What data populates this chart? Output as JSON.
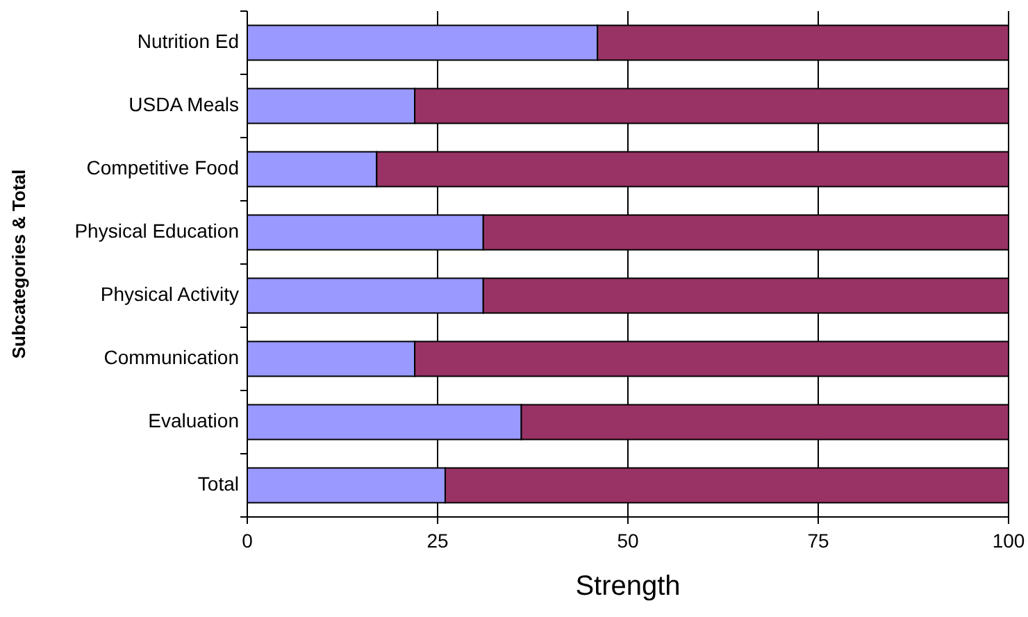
{
  "chart_data": {
    "type": "bar",
    "orientation": "horizontal",
    "stacked": true,
    "categories": [
      "Nutrition Ed",
      "USDA Meals",
      "Competitive Food",
      "Physical Education",
      "Physical Activity",
      "Communication",
      "Evaluation",
      "Total"
    ],
    "series": [
      {
        "color": "#9999ff",
        "values": [
          46,
          22,
          17,
          31,
          31,
          22,
          36,
          26
        ]
      },
      {
        "color": "#993366",
        "values": [
          54,
          78,
          83,
          69,
          69,
          78,
          64,
          74
        ]
      }
    ],
    "xlim": [
      0,
      100
    ],
    "xticks": [
      0,
      25,
      50,
      75,
      100
    ],
    "xlabel": "Strength",
    "ylabel": "Subcategories & Total",
    "grid": "x"
  }
}
